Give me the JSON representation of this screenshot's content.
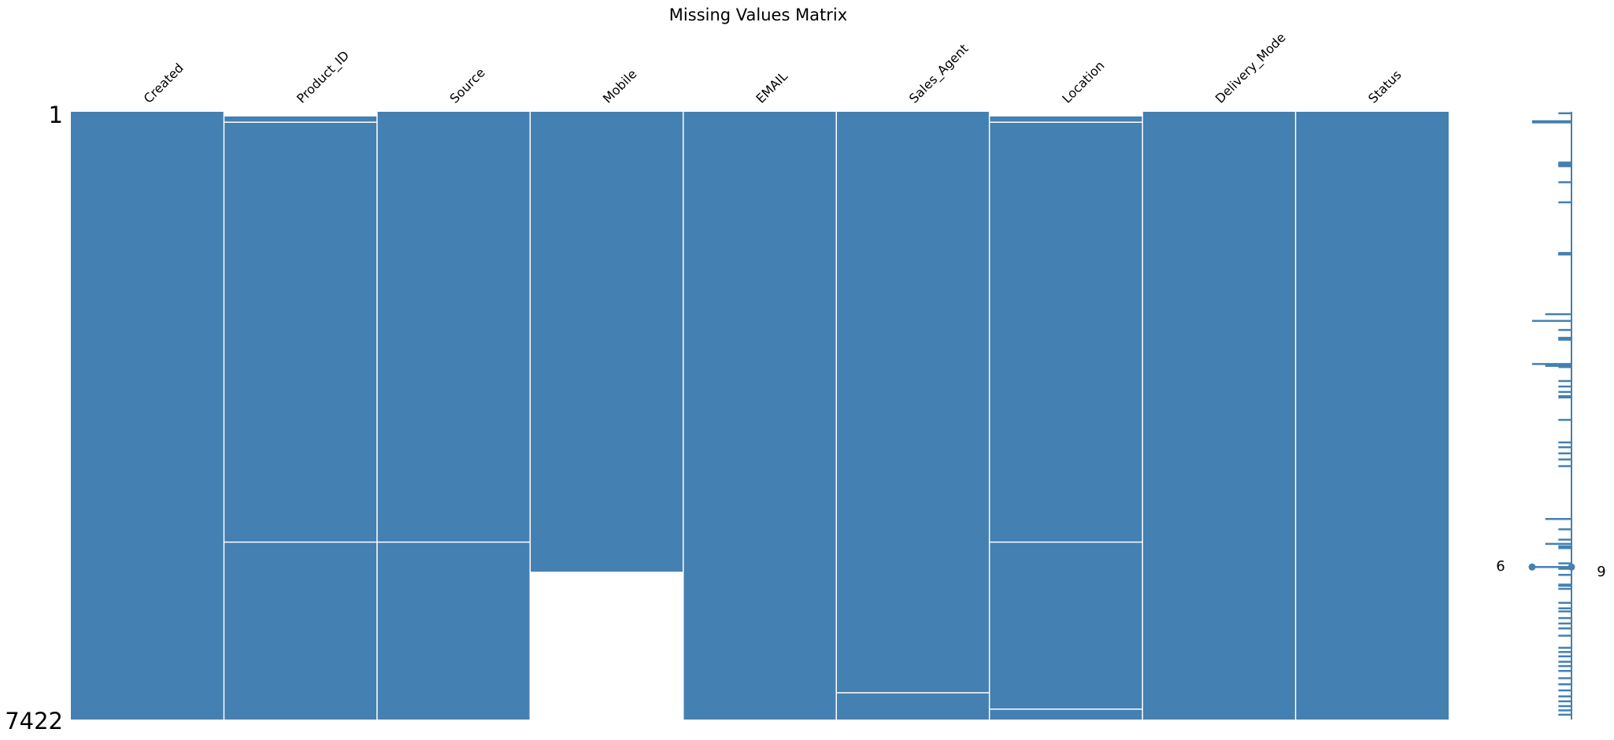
{
  "chart_data": {
    "type": "heatmap",
    "title": "Missing Values Matrix",
    "columns": [
      "Created",
      "Product_ID",
      "Source",
      "Mobile",
      "EMAIL",
      "Sales_Agent",
      "Location",
      "Delivery_Mode",
      "Status"
    ],
    "n_rows": 7422,
    "row_labels": [
      "1",
      "7422"
    ],
    "missing_row_ranges": {
      "Created": [],
      "Product_ID": [
        [
          1,
          58
        ]
      ],
      "Source": [],
      "Mobile": [
        [
          5617,
          7422
        ]
      ],
      "EMAIL": [],
      "Sales_Agent": [],
      "Location": [
        [
          1,
          58
        ]
      ],
      "Delivery_Mode": [],
      "Status": []
    },
    "row_separators": {
      "Created": [],
      "Product_ID": [
        128,
        5255
      ],
      "Source": [
        5255
      ],
      "Mobile": [],
      "EMAIL": [],
      "Sales_Agent": [
        7095
      ],
      "Location": [
        128,
        5255,
        7295
      ],
      "Delivery_Mode": [],
      "Status": []
    },
    "colors": {
      "present": "#4480b1",
      "missing": "#ffffff",
      "separator": "#ffffff"
    },
    "sparkline": {
      "min_label": "6",
      "max_label": "9",
      "min_completeness": 6,
      "max_completeness": 9,
      "min_row": 5560,
      "max_row": 5560,
      "spikes": [
        [
          0.0025,
          8
        ],
        [
          0.0155,
          6
        ],
        [
          0.0165,
          7
        ],
        [
          0.0175,
          6
        ],
        [
          0.0835,
          8
        ],
        [
          0.085,
          8
        ],
        [
          0.0865,
          8
        ],
        [
          0.088,
          8
        ],
        [
          0.0895,
          8
        ],
        [
          0.116,
          8
        ],
        [
          0.149,
          8
        ],
        [
          0.2325,
          8
        ],
        [
          0.2345,
          8
        ],
        [
          0.2345,
          8
        ],
        [
          0.2345,
          8
        ],
        [
          0.2345,
          8
        ],
        [
          0.2345,
          8
        ],
        [
          0.2345,
          8
        ],
        [
          0.2345,
          8
        ],
        [
          0.2345,
          8
        ],
        [
          0.2345,
          8
        ],
        [
          0.2345,
          8
        ],
        [
          0.2345,
          8
        ],
        [
          0.2345,
          8
        ],
        [
          0.2345,
          8
        ],
        [
          0.2345,
          8
        ],
        [
          0.2345,
          8
        ],
        [
          0.2345,
          8
        ],
        [
          0.2345,
          8
        ],
        [
          0.2345,
          8
        ],
        [
          0.2345,
          8
        ],
        [
          0.2325,
          8
        ],
        [
          0.2345,
          8
        ],
        [
          0.2345,
          8
        ],
        [
          0.2345,
          8
        ],
        [
          0.2345,
          8
        ],
        [
          0.2345,
          8
        ],
        [
          0.2345,
          8
        ],
        [
          0.2345,
          8
        ],
        [
          0.2345,
          8
        ],
        [
          0.2345,
          8
        ],
        [
          0.333,
          7
        ],
        [
          0.344,
          6
        ],
        [
          0.359,
          8
        ],
        [
          0.372,
          8
        ],
        [
          0.373,
          8
        ],
        [
          0.374,
          8
        ],
        [
          0.375,
          8
        ],
        [
          0.415,
          6
        ],
        [
          0.418,
          7
        ],
        [
          0.42,
          8
        ],
        [
          0.443,
          8
        ],
        [
          0.452,
          8
        ],
        [
          0.461,
          8
        ],
        [
          0.468,
          8
        ],
        [
          0.47,
          8
        ],
        [
          0.507,
          8
        ],
        [
          0.544,
          8
        ],
        [
          0.552,
          8
        ],
        [
          0.562,
          8
        ],
        [
          0.572,
          8
        ],
        [
          0.583,
          8
        ],
        [
          0.67,
          7
        ],
        [
          0.687,
          8
        ],
        [
          0.704,
          8
        ],
        [
          0.711,
          7
        ],
        [
          0.715,
          8
        ],
        [
          0.718,
          8
        ],
        [
          0.743,
          8
        ],
        [
          0.752,
          8
        ],
        [
          0.762,
          8
        ],
        [
          0.778,
          8
        ],
        [
          0.78,
          8
        ],
        [
          0.785,
          8
        ],
        [
          0.808,
          8
        ],
        [
          0.817,
          8
        ],
        [
          0.822,
          8
        ],
        [
          0.833,
          8
        ],
        [
          0.842,
          8
        ],
        [
          0.85,
          8
        ],
        [
          0.862,
          8
        ],
        [
          0.882,
          8
        ],
        [
          0.889,
          8
        ],
        [
          0.896,
          8
        ],
        [
          0.905,
          8
        ],
        [
          0.912,
          8
        ],
        [
          0.92,
          8
        ],
        [
          0.932,
          8
        ],
        [
          0.942,
          8
        ],
        [
          0.952,
          8
        ],
        [
          0.962,
          8
        ],
        [
          0.97,
          8
        ],
        [
          0.978,
          8
        ],
        [
          0.985,
          8
        ],
        [
          0.992,
          8
        ]
      ]
    }
  }
}
